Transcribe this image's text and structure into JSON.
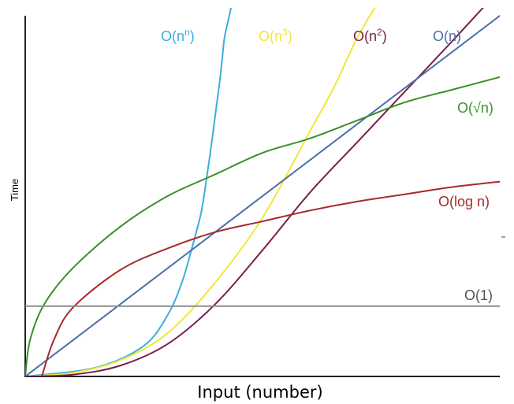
{
  "chart_data": {
    "type": "line",
    "title": "",
    "xlabel": "Input (number)",
    "ylabel": "Time",
    "xlim": [
      0,
      10
    ],
    "ylim": [
      0,
      10
    ],
    "grid": false,
    "legend": "inline labels at curve ends",
    "series": [
      {
        "name": "O(n^n)",
        "label": {
          "base": "O(n",
          "sup": "n",
          "tail": ")"
        },
        "color": "#3aaed8",
        "x": [
          0,
          1.5,
          2.5,
          3,
          3.3,
          3.5,
          3.7,
          3.8,
          3.9,
          4.0,
          4.1,
          4.15,
          4.2,
          4.3,
          4.35,
          4.4
        ],
        "y": [
          0,
          0.25,
          0.85,
          1.7,
          2.6,
          3.5,
          4.5,
          5.3,
          6.2,
          7.2,
          8.2,
          8.8,
          9.4,
          10.0,
          10.3,
          10.5
        ]
      },
      {
        "name": "O(n^3)",
        "label": {
          "base": "O(n",
          "sup": "3",
          "tail": ")"
        },
        "color": "#f2e63a",
        "x": [
          0,
          1,
          2,
          3,
          4,
          5,
          6,
          6.5,
          7.0,
          7.5
        ],
        "y": [
          0,
          0.1,
          0.45,
          1.2,
          2.6,
          4.4,
          6.8,
          8.0,
          9.4,
          10.5
        ]
      },
      {
        "name": "O(n^2)",
        "label": {
          "base": "O(n",
          "sup": "2",
          "tail": ")"
        },
        "color": "#7a1f4a",
        "x": [
          0,
          1,
          2,
          3,
          4,
          5,
          6,
          7,
          8,
          9,
          9.7
        ],
        "y": [
          0,
          0.05,
          0.3,
          0.9,
          2.0,
          3.5,
          5.1,
          6.5,
          7.9,
          9.3,
          10.3
        ]
      },
      {
        "name": "O(n)",
        "label": {
          "base": "O(n)",
          "sup": "",
          "tail": ""
        },
        "color": "#4a6ea8",
        "x": [
          0,
          10
        ],
        "y": [
          0,
          10
        ]
      },
      {
        "name": "O(√n)",
        "label": {
          "base": "O(√n)",
          "sup": "",
          "tail": ""
        },
        "color": "#3c8f2a",
        "x": [
          0,
          0.1,
          0.4,
          1,
          2,
          3,
          4,
          5,
          6,
          7,
          8,
          9,
          10
        ],
        "y": [
          0,
          1.0,
          2.0,
          3.0,
          4.15,
          5.0,
          5.6,
          6.2,
          6.6,
          7.1,
          7.6,
          7.95,
          8.3
        ]
      },
      {
        "name": "O(log n)",
        "label": {
          "base": "O(log n)",
          "sup": "",
          "tail": ""
        },
        "color": "#a82a2a",
        "x": [
          0.35,
          0.6,
          1,
          2,
          3,
          4,
          5,
          6,
          7,
          8,
          9,
          10
        ],
        "y": [
          0,
          1.0,
          1.9,
          2.95,
          3.55,
          4.0,
          4.3,
          4.6,
          4.85,
          5.05,
          5.25,
          5.4
        ]
      },
      {
        "name": "O(1)",
        "label": {
          "base": "O(1)",
          "sup": "",
          "tail": ""
        },
        "color": "#8c8c8c",
        "x": [
          0,
          10
        ],
        "y": [
          1.95,
          1.95
        ]
      }
    ]
  }
}
